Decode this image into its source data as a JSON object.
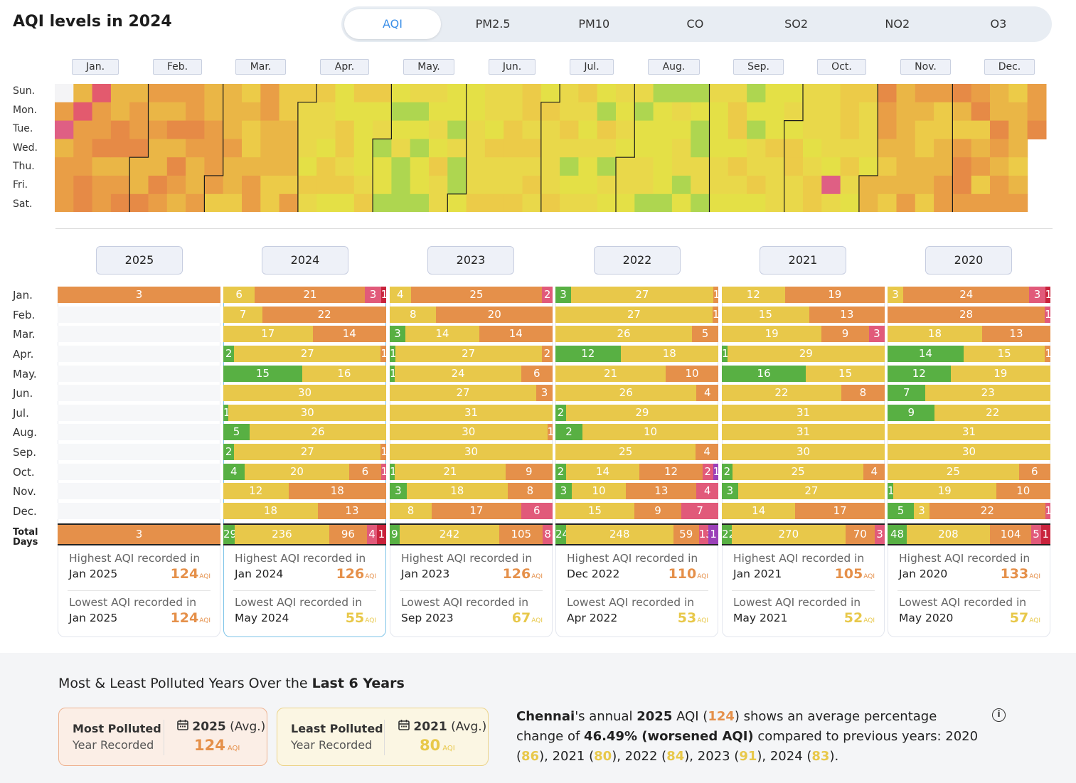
{
  "title": "AQI levels in 2024",
  "tabs": [
    "AQI",
    "PM2.5",
    "PM10",
    "CO",
    "SO2",
    "NO2",
    "O3"
  ],
  "heatmap": {
    "months": [
      "Jan.",
      "Feb.",
      "Mar.",
      "Apr.",
      "May.",
      "Jun.",
      "Jul.",
      "Aug.",
      "Sep.",
      "Oct.",
      "Nov.",
      "Dec."
    ],
    "days": [
      "Sun.",
      "Mon.",
      "Tue.",
      "Wed.",
      "Thu.",
      "Fri.",
      "Sat."
    ]
  },
  "colors": {
    "good": "#58b043",
    "satisfactory": "#e8c84a",
    "moderate": "#e5904a",
    "poor": "#e15a7a",
    "very_poor": "#c9233c",
    "severe": "#9b40b8"
  },
  "row_labels": [
    "Jan.",
    "Feb.",
    "Mar.",
    "Apr.",
    "May.",
    "Jun.",
    "Jul.",
    "Aug.",
    "Sep.",
    "Oct.",
    "Nov.",
    "Dec."
  ],
  "total_label": [
    "Total",
    "Days"
  ],
  "years": [
    {
      "year": "2025",
      "months": [
        [
          [
            "moderate",
            3
          ]
        ],
        [],
        [],
        [],
        [],
        [],
        [],
        [],
        [],
        [],
        [],
        []
      ],
      "total": [
        [
          "moderate",
          3
        ]
      ],
      "highest": {
        "label": "Highest AQI recorded in",
        "date": "Jan 2025",
        "value": "124",
        "unit": "AQI",
        "color": "#e5904a"
      },
      "lowest": {
        "label": "Lowest AQI recorded in",
        "date": "Jan 2025",
        "value": "124",
        "unit": "AQI",
        "color": "#e5904a"
      }
    },
    {
      "year": "2024",
      "months": [
        [
          [
            "satisfactory",
            6
          ],
          [
            "moderate",
            21
          ],
          [
            "poor",
            3
          ],
          [
            "very_poor",
            1
          ]
        ],
        [
          [
            "satisfactory",
            7
          ],
          [
            "moderate",
            22
          ]
        ],
        [
          [
            "satisfactory",
            17
          ],
          [
            "moderate",
            14
          ]
        ],
        [
          [
            "good",
            2
          ],
          [
            "satisfactory",
            27
          ],
          [
            "moderate",
            1
          ]
        ],
        [
          [
            "good",
            15
          ],
          [
            "satisfactory",
            16
          ]
        ],
        [
          [
            "satisfactory",
            30
          ]
        ],
        [
          [
            "good",
            1
          ],
          [
            "satisfactory",
            30
          ]
        ],
        [
          [
            "good",
            5
          ],
          [
            "satisfactory",
            26
          ]
        ],
        [
          [
            "good",
            2
          ],
          [
            "satisfactory",
            27
          ],
          [
            "moderate",
            1
          ]
        ],
        [
          [
            "good",
            4
          ],
          [
            "satisfactory",
            20
          ],
          [
            "moderate",
            6
          ],
          [
            "poor",
            1
          ]
        ],
        [
          [
            "satisfactory",
            12
          ],
          [
            "moderate",
            18
          ]
        ],
        [
          [
            "satisfactory",
            18
          ],
          [
            "moderate",
            13
          ]
        ]
      ],
      "total": [
        [
          "good",
          29
        ],
        [
          "satisfactory",
          236
        ],
        [
          "moderate",
          96
        ],
        [
          "poor",
          4
        ],
        [
          "very_poor",
          1
        ]
      ],
      "highest": {
        "label": "Highest AQI recorded in",
        "date": "Jan 2024",
        "value": "126",
        "unit": "AQI",
        "color": "#e5904a"
      },
      "lowest": {
        "label": "Lowest AQI recorded in",
        "date": "May 2024",
        "value": "55",
        "unit": "AQI",
        "color": "#e8c84a"
      }
    },
    {
      "year": "2023",
      "months": [
        [
          [
            "satisfactory",
            4
          ],
          [
            "moderate",
            25
          ],
          [
            "poor",
            2
          ]
        ],
        [
          [
            "satisfactory",
            8
          ],
          [
            "moderate",
            20
          ]
        ],
        [
          [
            "good",
            3
          ],
          [
            "satisfactory",
            14
          ],
          [
            "moderate",
            14
          ]
        ],
        [
          [
            "good",
            1
          ],
          [
            "satisfactory",
            27
          ],
          [
            "moderate",
            2
          ]
        ],
        [
          [
            "good",
            1
          ],
          [
            "satisfactory",
            24
          ],
          [
            "moderate",
            6
          ]
        ],
        [
          [
            "satisfactory",
            27
          ],
          [
            "moderate",
            3
          ]
        ],
        [
          [
            "satisfactory",
            31
          ]
        ],
        [
          [
            "satisfactory",
            30
          ],
          [
            "moderate",
            1
          ]
        ],
        [
          [
            "satisfactory",
            30
          ]
        ],
        [
          [
            "good",
            1
          ],
          [
            "satisfactory",
            21
          ],
          [
            "moderate",
            9
          ]
        ],
        [
          [
            "good",
            3
          ],
          [
            "satisfactory",
            18
          ],
          [
            "moderate",
            8
          ]
        ],
        [
          [
            "satisfactory",
            8
          ],
          [
            "moderate",
            17
          ],
          [
            "poor",
            6
          ]
        ]
      ],
      "total": [
        [
          "good",
          9
        ],
        [
          "satisfactory",
          242
        ],
        [
          "moderate",
          105
        ],
        [
          "poor",
          8
        ]
      ],
      "highest": {
        "label": "Highest AQI recorded in",
        "date": "Jan 2023",
        "value": "126",
        "unit": "AQI",
        "color": "#e5904a"
      },
      "lowest": {
        "label": "Lowest AQI recorded in",
        "date": "Sep 2023",
        "value": "67",
        "unit": "AQI",
        "color": "#e8c84a"
      }
    },
    {
      "year": "2022",
      "months": [
        [
          [
            "good",
            3
          ],
          [
            "satisfactory",
            27
          ],
          [
            "moderate",
            1
          ]
        ],
        [
          [
            "satisfactory",
            27
          ],
          [
            "moderate",
            1
          ]
        ],
        [
          [
            "satisfactory",
            26
          ],
          [
            "moderate",
            5
          ]
        ],
        [
          [
            "good",
            12
          ],
          [
            "satisfactory",
            18
          ]
        ],
        [
          [
            "satisfactory",
            21
          ],
          [
            "moderate",
            10
          ]
        ],
        [
          [
            "satisfactory",
            26
          ],
          [
            "moderate",
            4
          ]
        ],
        [
          [
            "good",
            2
          ],
          [
            "satisfactory",
            29
          ]
        ],
        [
          [
            "good",
            2
          ],
          [
            "satisfactory",
            10
          ]
        ],
        [
          [
            "satisfactory",
            25
          ],
          [
            "moderate",
            4
          ]
        ],
        [
          [
            "good",
            2
          ],
          [
            "satisfactory",
            14
          ],
          [
            "moderate",
            12
          ],
          [
            "poor",
            2
          ],
          [
            "severe",
            1
          ]
        ],
        [
          [
            "good",
            3
          ],
          [
            "satisfactory",
            10
          ],
          [
            "moderate",
            13
          ],
          [
            "poor",
            4
          ]
        ],
        [
          [
            "satisfactory",
            15
          ],
          [
            "moderate",
            9
          ],
          [
            "poor",
            7
          ]
        ]
      ],
      "total": [
        [
          "good",
          24
        ],
        [
          "satisfactory",
          248
        ],
        [
          "moderate",
          59
        ],
        [
          "poor",
          13
        ],
        [
          "severe",
          1
        ]
      ],
      "highest": {
        "label": "Highest AQI recorded in",
        "date": "Dec 2022",
        "value": "110",
        "unit": "AQI",
        "color": "#e5904a"
      },
      "lowest": {
        "label": "Lowest AQI recorded in",
        "date": "Apr 2022",
        "value": "53",
        "unit": "AQI",
        "color": "#e8c84a"
      }
    },
    {
      "year": "2021",
      "months": [
        [
          [
            "satisfactory",
            12
          ],
          [
            "moderate",
            19
          ]
        ],
        [
          [
            "satisfactory",
            15
          ],
          [
            "moderate",
            13
          ]
        ],
        [
          [
            "satisfactory",
            19
          ],
          [
            "moderate",
            9
          ],
          [
            "poor",
            3
          ]
        ],
        [
          [
            "good",
            1
          ],
          [
            "satisfactory",
            29
          ]
        ],
        [
          [
            "good",
            16
          ],
          [
            "satisfactory",
            15
          ]
        ],
        [
          [
            "satisfactory",
            22
          ],
          [
            "moderate",
            8
          ]
        ],
        [
          [
            "satisfactory",
            31
          ]
        ],
        [
          [
            "satisfactory",
            31
          ]
        ],
        [
          [
            "satisfactory",
            30
          ]
        ],
        [
          [
            "good",
            2
          ],
          [
            "satisfactory",
            25
          ],
          [
            "moderate",
            4
          ]
        ],
        [
          [
            "good",
            3
          ],
          [
            "satisfactory",
            27
          ]
        ],
        [
          [
            "satisfactory",
            14
          ],
          [
            "moderate",
            17
          ]
        ]
      ],
      "total": [
        [
          "good",
          22
        ],
        [
          "satisfactory",
          270
        ],
        [
          "moderate",
          70
        ],
        [
          "poor",
          3
        ]
      ],
      "highest": {
        "label": "Highest AQI recorded in",
        "date": "Jan 2021",
        "value": "105",
        "unit": "AQI",
        "color": "#e5904a"
      },
      "lowest": {
        "label": "Lowest AQI recorded in",
        "date": "May 2021",
        "value": "52",
        "unit": "AQI",
        "color": "#e8c84a"
      }
    },
    {
      "year": "2020",
      "months": [
        [
          [
            "satisfactory",
            3
          ],
          [
            "moderate",
            24
          ],
          [
            "poor",
            3
          ],
          [
            "very_poor",
            1
          ]
        ],
        [
          [
            "moderate",
            28
          ],
          [
            "poor",
            1
          ]
        ],
        [
          [
            "satisfactory",
            18
          ],
          [
            "moderate",
            13
          ]
        ],
        [
          [
            "good",
            14
          ],
          [
            "satisfactory",
            15
          ],
          [
            "moderate",
            1
          ]
        ],
        [
          [
            "good",
            12
          ],
          [
            "satisfactory",
            19
          ]
        ],
        [
          [
            "good",
            7
          ],
          [
            "satisfactory",
            23
          ]
        ],
        [
          [
            "good",
            9
          ],
          [
            "satisfactory",
            22
          ]
        ],
        [
          [
            "satisfactory",
            31
          ]
        ],
        [
          [
            "satisfactory",
            30
          ]
        ],
        [
          [
            "satisfactory",
            25
          ],
          [
            "moderate",
            6
          ]
        ],
        [
          [
            "good",
            1
          ],
          [
            "satisfactory",
            19
          ],
          [
            "moderate",
            10
          ]
        ],
        [
          [
            "good",
            5
          ],
          [
            "satisfactory",
            3
          ],
          [
            "moderate",
            22
          ],
          [
            "poor",
            1
          ]
        ]
      ],
      "total": [
        [
          "good",
          48
        ],
        [
          "satisfactory",
          208
        ],
        [
          "moderate",
          104
        ],
        [
          "poor",
          5
        ],
        [
          "very_poor",
          1
        ]
      ],
      "highest": {
        "label": "Highest AQI recorded in",
        "date": "Jan 2020",
        "value": "133",
        "unit": "AQI",
        "color": "#e5904a"
      },
      "lowest": {
        "label": "Lowest AQI recorded in",
        "date": "May 2020",
        "value": "57",
        "unit": "AQI",
        "color": "#e8c84a"
      }
    }
  ],
  "bottom": {
    "title_prefix": "Most & Least Polluted Years Over the",
    "title_bold": "Last 6 Years",
    "most": {
      "line1": "Most Polluted",
      "line2": "Year Recorded",
      "year": "2025",
      "avg": "(Avg.)",
      "value": "124",
      "unit": "AQI",
      "color": "#e5904a"
    },
    "least": {
      "line1": "Least Polluted",
      "line2": "Year Recorded",
      "year": "2021",
      "avg": "(Avg.)",
      "value": "80",
      "unit": "AQI",
      "color": "#e8c84a"
    },
    "summary": {
      "city": "Chennai",
      "t1": "'s annual ",
      "year": "2025",
      "t2": " AQI (",
      "aqi": "124",
      "t3": ") shows an average percentage change of ",
      "pct": "46.49% (worsened AQI)",
      "t4": " compared to previous years: ",
      "history": [
        [
          "2020",
          "86"
        ],
        [
          "2021",
          "80"
        ],
        [
          "2022",
          "84"
        ],
        [
          "2023",
          "91"
        ],
        [
          "2024",
          "83"
        ]
      ]
    }
  }
}
